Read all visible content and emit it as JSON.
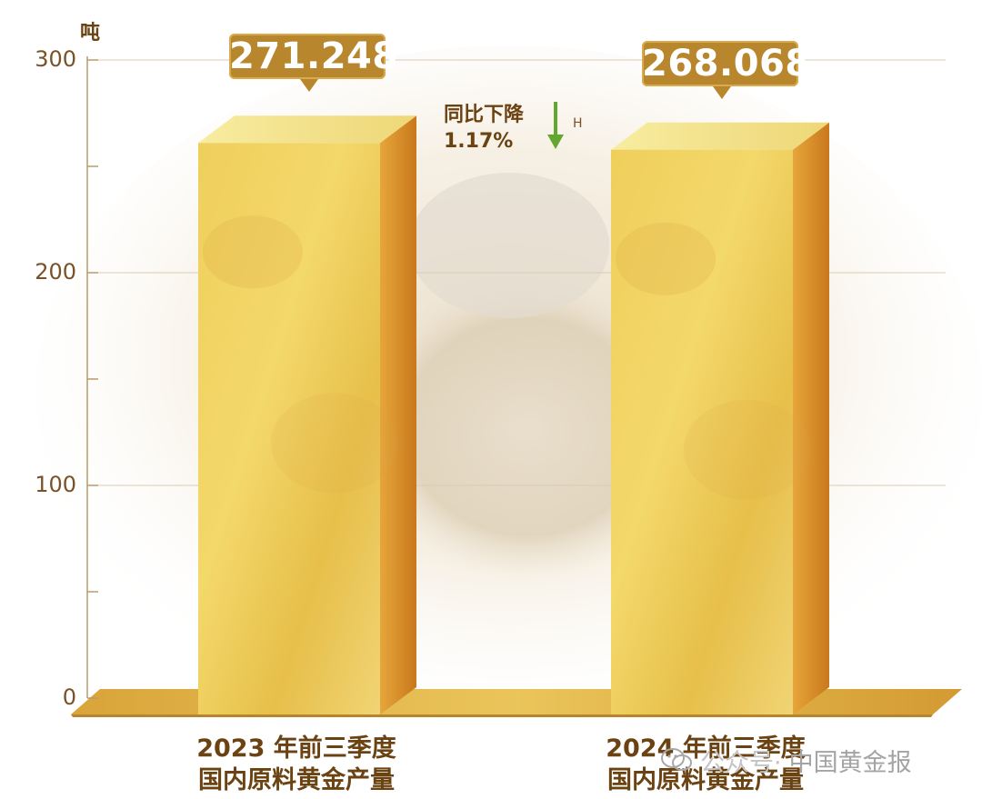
{
  "chart_data": {
    "type": "bar",
    "categories": [
      "2023 年前三季度\n国内原料黄金产量",
      "2024 年前三季度\n国内原料黄金产量"
    ],
    "values": [
      271.248,
      268.068
    ],
    "value_labels": [
      "271.248",
      "268.068"
    ],
    "ylabel": "吨",
    "ylim": [
      0,
      300
    ],
    "yticks": [
      "0",
      "100",
      "200",
      "300"
    ],
    "grid": true,
    "annotation": {
      "line1": "同比下降",
      "line2": "1.17%",
      "side_mark": "H"
    }
  },
  "labels": {
    "cat1_line1": "2023 年前三季度",
    "cat1_line2": "国内原料黄金产量",
    "cat2_line1": "2024 年前三季度",
    "cat2_line2": "国内原料黄金产量"
  },
  "watermark": {
    "text": "中国黄金报",
    "prefix": "公众号·",
    "icon": "wechat-icon"
  },
  "colors": {
    "axis": "#b89a6d",
    "gold_front": "#e9c552",
    "gold_side": "#d38a23",
    "gold_top": "#f6e88b",
    "callout": "#b8862c",
    "arrow": "#63a730",
    "text": "#6b4212"
  }
}
